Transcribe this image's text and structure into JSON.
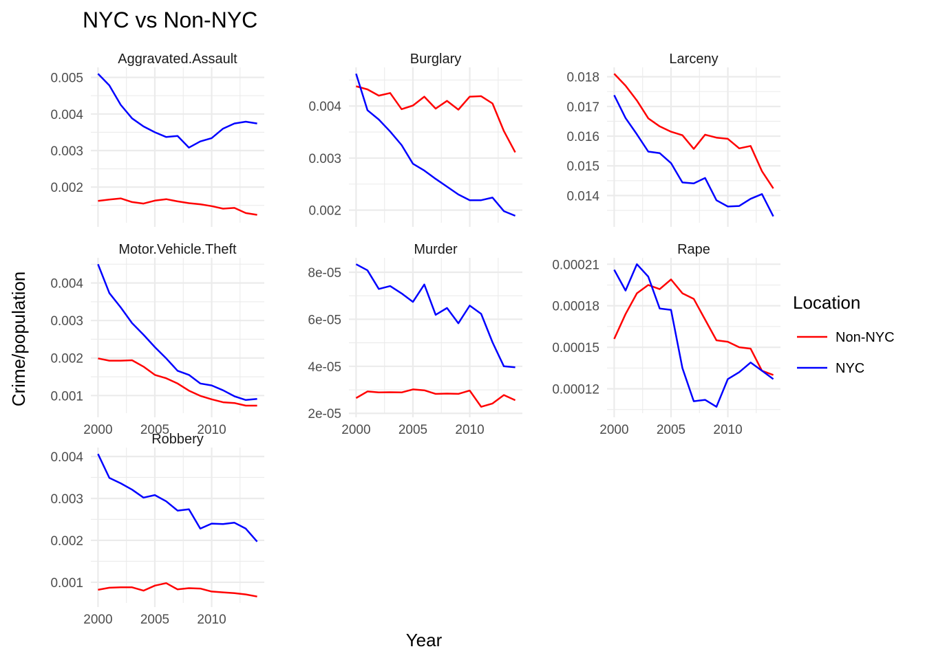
{
  "title": "NYC vs Non-NYC",
  "xlabel": "Year",
  "ylabel": "Crime/population",
  "legend": {
    "title": "Location",
    "position": "right",
    "items": [
      {
        "name": "Non-NYC",
        "color": "#ff0000"
      },
      {
        "name": "NYC",
        "color": "#0000ff"
      }
    ]
  },
  "chart_data": {
    "type": "line",
    "facet": "wrap",
    "grid": true,
    "x_shared": {
      "ticks": [
        "2000",
        "2005",
        "2010"
      ],
      "range": [
        2000,
        2014
      ]
    },
    "panels": [
      {
        "name": "Aggravated.Assault",
        "x": [
          2000,
          2001,
          2002,
          2003,
          2004,
          2005,
          2006,
          2007,
          2008,
          2009,
          2010,
          2011,
          2012,
          2013,
          2014
        ],
        "ylim": [
          0.0012,
          0.0051
        ],
        "yticks": [
          "0.002",
          "0.003",
          "0.004",
          "0.005"
        ],
        "series": [
          {
            "name": "Non-NYC",
            "values": [
              0.00162,
              0.00166,
              0.00169,
              0.00159,
              0.00155,
              0.00163,
              0.00167,
              0.00161,
              0.00156,
              0.00153,
              0.00148,
              0.00141,
              0.00143,
              0.00129,
              0.00124
            ]
          },
          {
            "name": "NYC",
            "values": [
              0.0051,
              0.00478,
              0.00425,
              0.00388,
              0.00366,
              0.0035,
              0.00337,
              0.0034,
              0.00308,
              0.00325,
              0.00334,
              0.0036,
              0.00374,
              0.00379,
              0.00374
            ]
          }
        ]
      },
      {
        "name": "Burglary",
        "x": [
          2000,
          2001,
          2002,
          2003,
          2004,
          2005,
          2006,
          2007,
          2008,
          2009,
          2010,
          2011,
          2012,
          2013,
          2014
        ],
        "ylim": [
          0.00188,
          0.00462
        ],
        "yticks": [
          "0.002",
          "0.003",
          "0.004"
        ],
        "series": [
          {
            "name": "Non-NYC",
            "values": [
              0.00438,
              0.00432,
              0.0042,
              0.00425,
              0.00394,
              0.00401,
              0.00418,
              0.00395,
              0.0041,
              0.00393,
              0.00418,
              0.00419,
              0.00405,
              0.00352,
              0.00311
            ]
          },
          {
            "name": "NYC",
            "values": [
              0.00462,
              0.00392,
              0.00374,
              0.00351,
              0.00325,
              0.00289,
              0.00276,
              0.0026,
              0.00245,
              0.0023,
              0.00219,
              0.00219,
              0.00224,
              0.00198,
              0.00189
            ]
          }
        ]
      },
      {
        "name": "Larceny",
        "x": [
          2000,
          2001,
          2002,
          2003,
          2004,
          2005,
          2006,
          2007,
          2008,
          2009,
          2010,
          2011,
          2012,
          2013,
          2014
        ],
        "ylim": [
          0.0133,
          0.0181
        ],
        "yticks": [
          "0.014",
          "0.015",
          "0.016",
          "0.017",
          "0.018"
        ],
        "series": [
          {
            "name": "Non-NYC",
            "values": [
              0.0181,
              0.0177,
              0.0172,
              0.0166,
              0.01633,
              0.01615,
              0.01603,
              0.01557,
              0.01605,
              0.01595,
              0.01591,
              0.01559,
              0.01567,
              0.01482,
              0.01424
            ]
          },
          {
            "name": "NYC",
            "values": [
              0.01738,
              0.01661,
              0.01606,
              0.01548,
              0.01543,
              0.01509,
              0.01444,
              0.01441,
              0.01459,
              0.01384,
              0.01363,
              0.01365,
              0.01389,
              0.01405,
              0.0133
            ]
          }
        ]
      },
      {
        "name": "Motor.Vehicle.Theft",
        "x": [
          2000,
          2001,
          2002,
          2003,
          2004,
          2005,
          2006,
          2007,
          2008,
          2009,
          2010,
          2011,
          2012,
          2013,
          2014
        ],
        "ylim": [
          0.0007,
          0.0045
        ],
        "yticks": [
          "0.001",
          "0.002",
          "0.003",
          "0.004"
        ],
        "series": [
          {
            "name": "Non-NYC",
            "values": [
              0.00199,
              0.00193,
              0.00193,
              0.00194,
              0.00177,
              0.00155,
              0.00146,
              0.00132,
              0.00113,
              0.00099,
              0.0009,
              0.00082,
              0.0008,
              0.00073,
              0.00073
            ]
          },
          {
            "name": "NYC",
            "values": [
              0.0045,
              0.00373,
              0.00335,
              0.00293,
              0.00262,
              0.00229,
              0.00199,
              0.00166,
              0.00155,
              0.00132,
              0.00127,
              0.00114,
              0.00098,
              0.00088,
              0.00091
            ]
          }
        ]
      },
      {
        "name": "Murder",
        "x": [
          2000,
          2001,
          2002,
          2003,
          2004,
          2005,
          2006,
          2007,
          2008,
          2009,
          2010,
          2011,
          2012,
          2013,
          2014
        ],
        "ylim": [
          2.28e-05,
          8.34e-05
        ],
        "yticks": [
          "2e-05",
          "4e-05",
          "6e-05",
          "8e-05"
        ],
        "series": [
          {
            "name": "Non-NYC",
            "values": [
              2.65e-05,
              2.93e-05,
              2.89e-05,
              2.9e-05,
              2.89e-05,
              3.02e-05,
              2.98e-05,
              2.83e-05,
              2.84e-05,
              2.83e-05,
              2.97e-05,
              2.28e-05,
              2.42e-05,
              2.78e-05,
              2.56e-05
            ]
          },
          {
            "name": "NYC",
            "values": [
              8.34e-05,
              8.08e-05,
              7.29e-05,
              7.41e-05,
              7.1e-05,
              6.74e-05,
              7.48e-05,
              6.19e-05,
              6.48e-05,
              5.83e-05,
              6.58e-05,
              6.23e-05,
              5.02e-05,
              4e-05,
              3.96e-05
            ]
          }
        ]
      },
      {
        "name": "Rape",
        "x": [
          2000,
          2001,
          2002,
          2003,
          2004,
          2005,
          2006,
          2007,
          2008,
          2009,
          2010,
          2011,
          2012,
          2013,
          2014
        ],
        "ylim": [
          0.000107,
          0.00021
        ],
        "yticks": [
          "0.00012",
          "0.00015",
          "0.00018",
          "0.00021"
        ],
        "series": [
          {
            "name": "Non-NYC",
            "values": [
              0.000156,
              0.000174,
              0.000189,
              0.000195,
              0.000192,
              0.000199,
              0.000189,
              0.000185,
              0.00017,
              0.000155,
              0.000154,
              0.00015,
              0.000149,
              0.000133,
              0.00013
            ]
          },
          {
            "name": "NYC",
            "values": [
              0.000206,
              0.000191,
              0.00021,
              0.000201,
              0.000178,
              0.000177,
              0.000135,
              0.000111,
              0.000112,
              0.000107,
              0.000127,
              0.000132,
              0.000139,
              0.000133,
              0.000127
            ]
          }
        ]
      },
      {
        "name": "Robbery",
        "x": [
          2000,
          2001,
          2002,
          2003,
          2004,
          2005,
          2006,
          2007,
          2008,
          2009,
          2010,
          2011,
          2012,
          2013,
          2014
        ],
        "ylim": [
          0.00066,
          0.00406
        ],
        "yticks": [
          "0.001",
          "0.002",
          "0.003",
          "0.004"
        ],
        "series": [
          {
            "name": "Non-NYC",
            "values": [
              0.00082,
              0.00087,
              0.00088,
              0.00088,
              0.0008,
              0.00092,
              0.00098,
              0.00083,
              0.00086,
              0.00085,
              0.00078,
              0.00076,
              0.00074,
              0.00071,
              0.00066
            ]
          },
          {
            "name": "NYC",
            "values": [
              0.00406,
              0.00349,
              0.00336,
              0.00321,
              0.00302,
              0.00308,
              0.00293,
              0.00271,
              0.00274,
              0.00228,
              0.0024,
              0.00239,
              0.00242,
              0.00228,
              0.00197
            ]
          }
        ]
      }
    ]
  }
}
